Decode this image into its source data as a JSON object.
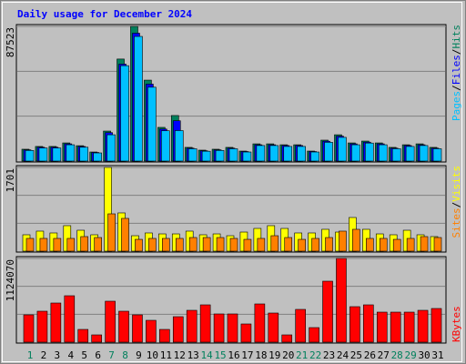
{
  "chart_data": [
    {
      "type": "bar",
      "title": "Daily usage for December 2024",
      "legend_separator": "/",
      "ylim": [
        0,
        87523
      ],
      "yticks": [
        87523
      ],
      "series": [
        {
          "name": "Hits",
          "color": "#00805c",
          "values": [
            7700,
            9500,
            9500,
            11800,
            10000,
            5900,
            19500,
            66300,
            87523,
            52600,
            21900,
            29600,
            8900,
            7100,
            7700,
            8900,
            6500,
            11200,
            11200,
            10600,
            10600,
            6500,
            13600,
            17100,
            11800,
            13000,
            11800,
            8900,
            10600,
            11200,
            8900
          ]
        },
        {
          "name": "Files",
          "color": "#0000ff",
          "values": [
            7300,
            9000,
            9000,
            11200,
            9500,
            5600,
            18500,
            63000,
            83100,
            50000,
            20800,
            26200,
            8400,
            6700,
            7300,
            8400,
            6200,
            10600,
            10600,
            10100,
            10100,
            6200,
            12900,
            16200,
            11200,
            12300,
            11200,
            8400,
            10100,
            10600,
            8400
          ]
        },
        {
          "name": "Pages",
          "color": "#00c0ff",
          "values": [
            6900,
            8500,
            8500,
            10600,
            9000,
            5300,
            17100,
            62000,
            81000,
            48000,
            19700,
            19800,
            8000,
            6400,
            6900,
            8000,
            5900,
            10100,
            10100,
            9500,
            9500,
            5900,
            12200,
            15400,
            10600,
            11700,
            10600,
            8000,
            9500,
            10100,
            8000
          ]
        }
      ]
    },
    {
      "type": "bar",
      "legend_separator": "/",
      "ylim": [
        0,
        1701
      ],
      "yticks": [
        1701
      ],
      "series": [
        {
          "name": "Visits",
          "color": "#ffff00",
          "values": [
            333,
            407,
            370,
            518,
            425,
            333,
            1701,
            777,
            314,
            370,
            351,
            351,
            407,
            333,
            351,
            314,
            388,
            462,
            518,
            462,
            370,
            370,
            444,
            388,
            684,
            444,
            351,
            333,
            425,
            333,
            296
          ]
        },
        {
          "name": "Sites",
          "color": "#ff8000",
          "values": [
            259,
            259,
            259,
            259,
            296,
            277,
            758,
            666,
            240,
            259,
            259,
            259,
            277,
            277,
            277,
            259,
            240,
            259,
            314,
            277,
            240,
            259,
            277,
            407,
            444,
            259,
            259,
            240,
            259,
            296,
            277
          ]
        }
      ]
    },
    {
      "type": "bar",
      "ylim": [
        0,
        1124070
      ],
      "yticks": [
        1124070
      ],
      "categories": [
        "1",
        "2",
        "3",
        "4",
        "5",
        "6",
        "7",
        "8",
        "9",
        "10",
        "11",
        "12",
        "13",
        "14",
        "15",
        "16",
        "17",
        "18",
        "19",
        "20",
        "21",
        "22",
        "23",
        "24",
        "25",
        "26",
        "27",
        "28",
        "29",
        "30",
        "31"
      ],
      "weekend": [
        true,
        false,
        false,
        false,
        false,
        false,
        true,
        true,
        false,
        false,
        false,
        false,
        false,
        true,
        true,
        false,
        false,
        false,
        false,
        false,
        true,
        true,
        false,
        false,
        false,
        false,
        false,
        true,
        true,
        false,
        false
      ],
      "weekend_color": "#00805c",
      "series": [
        {
          "name": "KBytes",
          "color": "#ff0000",
          "values": [
            366540,
            415412,
            525374,
            623118,
            171052,
            97744,
            549810,
            415412,
            366540,
            293232,
            171052,
            342104,
            427630,
            500938,
            378758,
            378758,
            244360,
            513156,
            390976,
            97744,
            439848,
            195488,
            818606,
            1124070,
            476502,
            500938,
            403194,
            403194,
            403194,
            427630,
            452066
          ]
        }
      ]
    }
  ]
}
